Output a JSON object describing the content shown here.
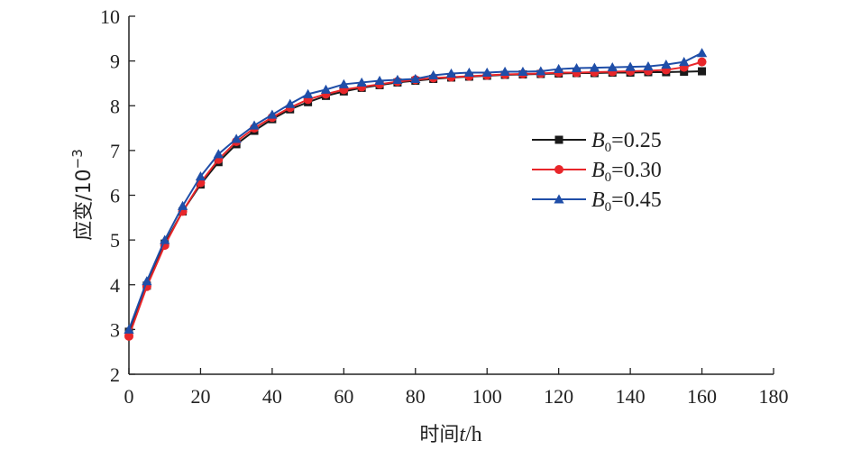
{
  "chart_data": {
    "type": "line",
    "xlabel": "时间t/h",
    "xlabel_parts": {
      "pre": "时间",
      "var": "t",
      "post": "/h"
    },
    "ylabel": "应变/10⁻³",
    "ylabel_parts": {
      "main": "应变/10",
      "sup": "−3"
    },
    "xlim": [
      0,
      180
    ],
    "ylim": [
      2,
      10
    ],
    "xticks": [
      0,
      20,
      40,
      60,
      80,
      100,
      120,
      140,
      160,
      180
    ],
    "yticks": [
      2,
      3,
      4,
      5,
      6,
      7,
      8,
      9,
      10
    ],
    "grid": false,
    "legend_position": "right",
    "x": [
      0,
      5,
      10,
      15,
      20,
      25,
      30,
      35,
      40,
      45,
      50,
      55,
      60,
      65,
      70,
      75,
      80,
      85,
      90,
      95,
      100,
      105,
      110,
      115,
      120,
      125,
      130,
      135,
      140,
      145,
      150,
      155,
      160
    ],
    "series": [
      {
        "name": "B0=0.25",
        "label_base": "B",
        "label_sub": "0",
        "label_value": "=0.25",
        "color": "#1a1a1a",
        "marker": "square",
        "values": [
          2.95,
          3.98,
          4.92,
          5.64,
          6.24,
          6.74,
          7.14,
          7.44,
          7.7,
          7.92,
          8.08,
          8.22,
          8.32,
          8.4,
          8.46,
          8.52,
          8.56,
          8.6,
          8.63,
          8.65,
          8.67,
          8.69,
          8.7,
          8.71,
          8.72,
          8.73,
          8.73,
          8.74,
          8.74,
          8.75,
          8.75,
          8.76,
          8.77
        ]
      },
      {
        "name": "B0=0.30",
        "label_base": "B",
        "label_sub": "0",
        "label_value": "=0.30",
        "color": "#e8262a",
        "marker": "circle",
        "values": [
          2.85,
          3.96,
          4.88,
          5.64,
          6.28,
          6.8,
          7.2,
          7.5,
          7.74,
          7.96,
          8.14,
          8.26,
          8.36,
          8.42,
          8.48,
          8.54,
          8.58,
          8.62,
          8.64,
          8.66,
          8.68,
          8.7,
          8.71,
          8.72,
          8.74,
          8.74,
          8.75,
          8.76,
          8.77,
          8.78,
          8.8,
          8.86,
          8.98
        ]
      },
      {
        "name": "B0=0.45",
        "label_base": "B",
        "label_sub": "0",
        "label_value": "=0.45",
        "color": "#1f4ea8",
        "marker": "triangle",
        "values": [
          3.0,
          4.08,
          5.0,
          5.76,
          6.42,
          6.92,
          7.26,
          7.56,
          7.8,
          8.04,
          8.26,
          8.36,
          8.48,
          8.52,
          8.56,
          8.58,
          8.6,
          8.68,
          8.72,
          8.74,
          8.74,
          8.76,
          8.76,
          8.77,
          8.82,
          8.84,
          8.85,
          8.86,
          8.87,
          8.88,
          8.92,
          8.98,
          9.18
        ]
      }
    ]
  }
}
